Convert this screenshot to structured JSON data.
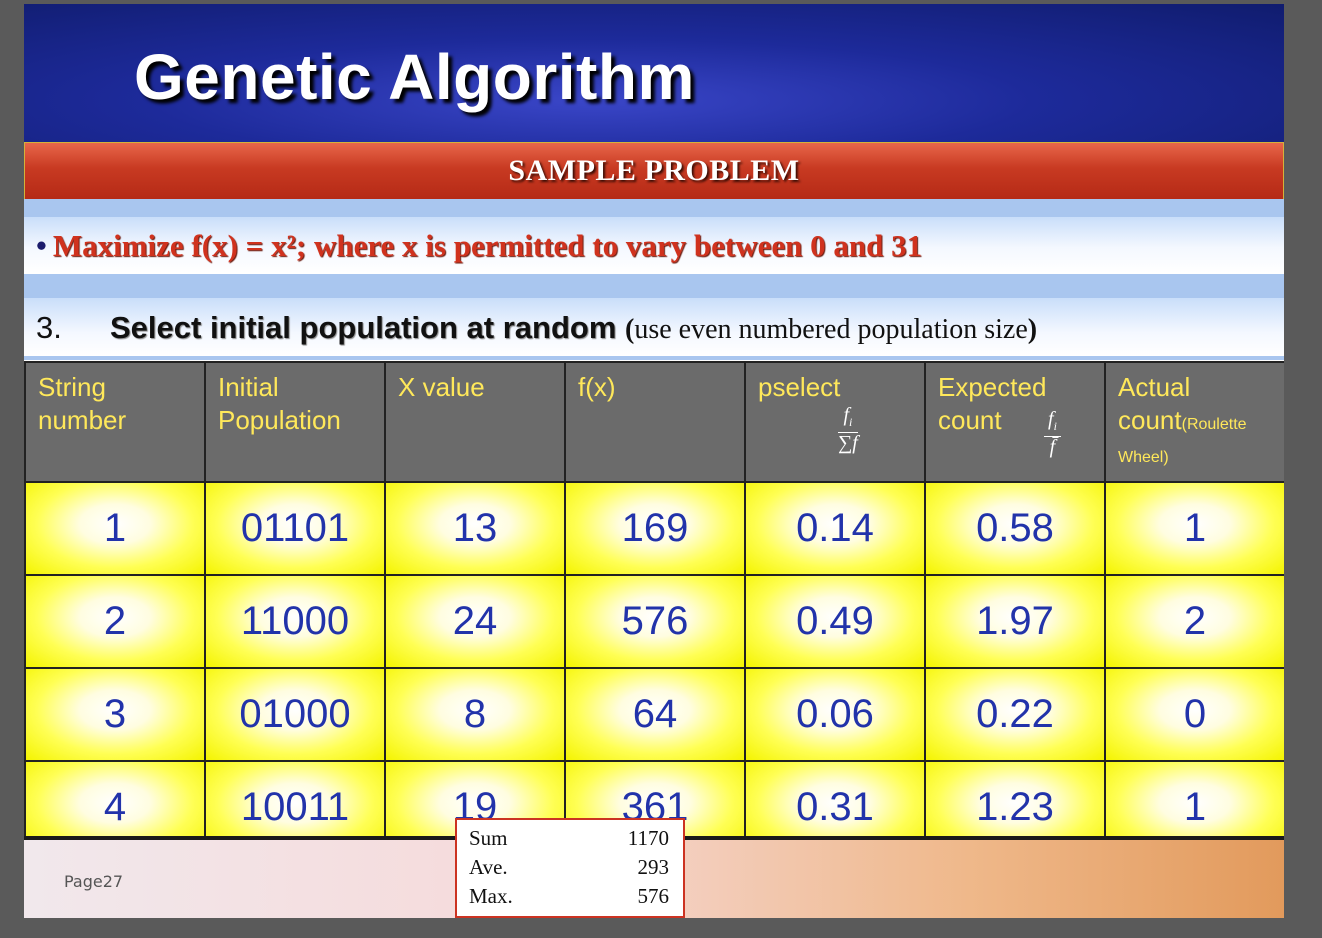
{
  "title": "Genetic Algorithm",
  "section_title": "SAMPLE PROBLEM",
  "problem": {
    "bullet": "•",
    "text": "Maximize f(x) = x²;  where x is permitted to vary between 0 and 31"
  },
  "step": {
    "number": "3.",
    "title": "Select initial population at random",
    "note_open": "(",
    "note": "use even numbered population size",
    "note_close": ")"
  },
  "table": {
    "headers": [
      {
        "line1": "String",
        "line2": "number"
      },
      {
        "line1": "Initial",
        "line2": "Population"
      },
      {
        "line1": "X value"
      },
      {
        "line1": "f(x)"
      },
      {
        "line1": "pselect",
        "fraction_num": "f",
        "fraction_sub": "i",
        "fraction_den": "∑f"
      },
      {
        "line1": "Expected",
        "line2": "count",
        "fraction_num": "f",
        "fraction_sub": "i",
        "fraction_den": "f̄"
      },
      {
        "line1": "Actual",
        "line2a": "count",
        "line2b": "(Roulette",
        "line3": "Wheel)"
      }
    ],
    "rows": [
      [
        "1",
        "01101",
        "13",
        "169",
        "0.14",
        "0.58",
        "1"
      ],
      [
        "2",
        "11000",
        "24",
        "576",
        "0.49",
        "1.97",
        "2"
      ],
      [
        "3",
        "01000",
        "8",
        "64",
        "0.06",
        "0.22",
        "0"
      ],
      [
        "4",
        "10011",
        "19",
        "361",
        "0.31",
        "1.23",
        "1"
      ]
    ]
  },
  "stats": [
    {
      "label": "Sum",
      "value": "1170"
    },
    {
      "label": "Ave.",
      "value": "293"
    },
    {
      "label": "Max.",
      "value": "576"
    }
  ],
  "page_label": "Page27"
}
